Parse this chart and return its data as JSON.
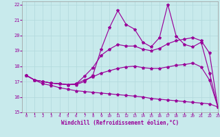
{
  "xlabel": "Windchill (Refroidissement éolien,°C)",
  "bg_color": "#c8eaec",
  "grid_color": "#b0d8dc",
  "line_color": "#990099",
  "xlim": [
    -0.5,
    23
  ],
  "ylim": [
    15,
    22.2
  ],
  "xticks": [
    0,
    1,
    2,
    3,
    4,
    5,
    6,
    7,
    8,
    9,
    10,
    11,
    12,
    13,
    14,
    15,
    16,
    17,
    18,
    19,
    20,
    21,
    22,
    23
  ],
  "yticks": [
    15,
    16,
    17,
    18,
    19,
    20,
    21,
    22
  ],
  "hours": [
    0,
    1,
    2,
    3,
    4,
    5,
    6,
    7,
    8,
    9,
    10,
    11,
    12,
    13,
    14,
    15,
    16,
    17,
    18,
    19,
    20,
    21,
    22,
    23
  ],
  "line_top": [
    17.4,
    17.1,
    17.0,
    16.9,
    16.85,
    16.8,
    16.8,
    17.0,
    17.4,
    19.1,
    20.5,
    21.6,
    20.7,
    20.4,
    19.55,
    19.25,
    19.85,
    22.0,
    19.95,
    19.4,
    19.25,
    19.55,
    17.55,
    15.35
  ],
  "line_mid_upper": [
    17.4,
    17.1,
    17.0,
    16.9,
    16.85,
    16.8,
    16.85,
    17.35,
    17.9,
    18.7,
    19.1,
    19.4,
    19.3,
    19.3,
    19.1,
    19.0,
    19.15,
    19.45,
    19.65,
    19.75,
    19.85,
    19.65,
    18.85,
    15.35
  ],
  "line_mid_lower": [
    17.4,
    17.1,
    17.0,
    16.9,
    16.85,
    16.8,
    16.85,
    17.1,
    17.3,
    17.55,
    17.7,
    17.85,
    17.95,
    18.0,
    17.9,
    17.85,
    17.85,
    17.95,
    18.05,
    18.1,
    18.2,
    17.95,
    17.1,
    15.35
  ],
  "line_bottom": [
    17.4,
    17.1,
    16.85,
    16.75,
    16.6,
    16.5,
    16.4,
    16.35,
    16.3,
    16.25,
    16.2,
    16.15,
    16.1,
    16.05,
    16.0,
    15.9,
    15.85,
    15.8,
    15.75,
    15.7,
    15.65,
    15.6,
    15.55,
    15.35
  ]
}
